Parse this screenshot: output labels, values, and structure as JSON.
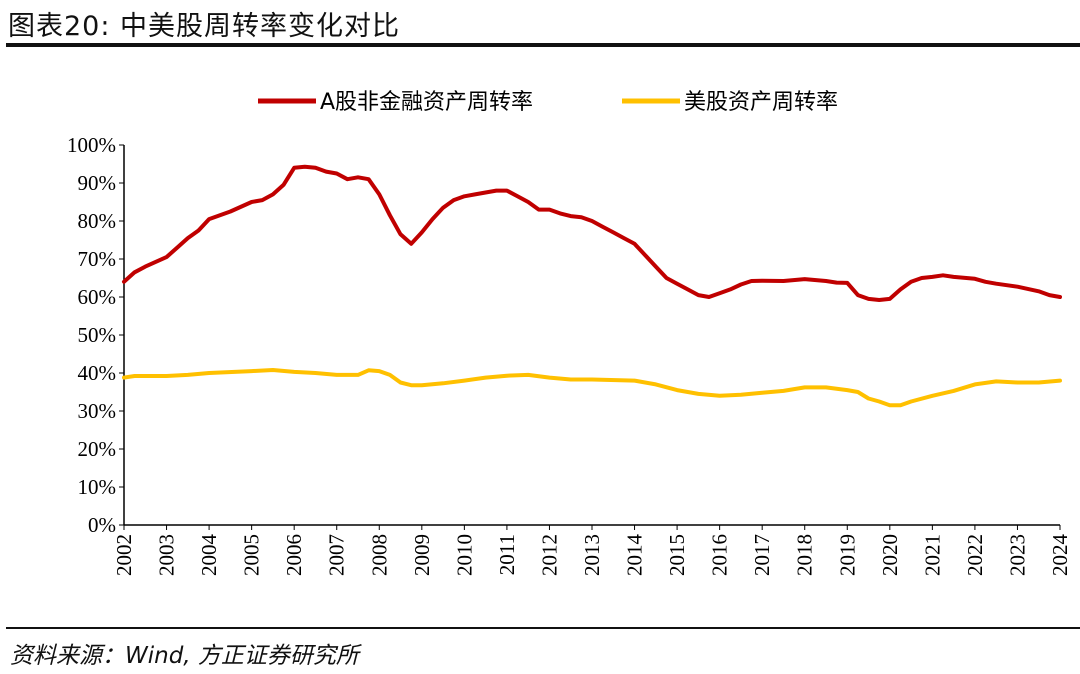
{
  "title": "图表20: 中美股周转率变化对比",
  "source": "资料来源：Wind, 方正证券研究所",
  "chart_data": {
    "type": "line",
    "title": "图表20: 中美股周转率变化对比",
    "xlim": [
      2002,
      2024
    ],
    "ylim": [
      0,
      100
    ],
    "y_ticks": [
      "0%",
      "10%",
      "20%",
      "30%",
      "40%",
      "50%",
      "60%",
      "70%",
      "80%",
      "90%",
      "100%"
    ],
    "x_ticks": [
      "2002",
      "2003",
      "2004",
      "2005",
      "2006",
      "2007",
      "2008",
      "2009",
      "2010",
      "2011",
      "2012",
      "2013",
      "2014",
      "2015",
      "2016",
      "2017",
      "2018",
      "2019",
      "2020",
      "2021",
      "2022",
      "2023",
      "2024"
    ],
    "legend_position": "top",
    "grid": false,
    "series": [
      {
        "name": "A股非金融资产周转率",
        "color": "#C00000",
        "x": [
          2002,
          2002.25,
          2002.5,
          2003,
          2003.25,
          2003.5,
          2003.75,
          2004,
          2004.5,
          2005,
          2005.25,
          2005.5,
          2005.75,
          2006,
          2006.25,
          2006.5,
          2006.75,
          2007,
          2007.25,
          2007.5,
          2007.75,
          2008,
          2008.25,
          2008.5,
          2008.75,
          2009,
          2009.25,
          2009.5,
          2009.75,
          2010,
          2010.25,
          2010.5,
          2010.75,
          2011,
          2011.25,
          2011.5,
          2011.75,
          2012,
          2012.25,
          2012.5,
          2012.75,
          2013,
          2013.25,
          2013.5,
          2013.75,
          2014,
          2014.25,
          2014.5,
          2014.75,
          2015,
          2015.25,
          2015.5,
          2015.75,
          2016,
          2016.25,
          2016.5,
          2016.75,
          2017,
          2017.5,
          2018,
          2018.5,
          2018.75,
          2019,
          2019.25,
          2019.5,
          2019.75,
          2020,
          2020.25,
          2020.5,
          2020.75,
          2021,
          2021.25,
          2021.5,
          2022,
          2022.25,
          2022.5,
          2023,
          2023.5,
          2023.75,
          2024
        ],
        "values": [
          64,
          66.5,
          68,
          70.5,
          73,
          75.5,
          77.5,
          80.5,
          82.5,
          85,
          85.5,
          87,
          89.5,
          94,
          94.3,
          94,
          93,
          92.5,
          91,
          91.5,
          91,
          87,
          81.5,
          76.5,
          74,
          77,
          80.5,
          83.5,
          85.5,
          86.5,
          87,
          87.5,
          88,
          88,
          86.5,
          85,
          83,
          83,
          82,
          81.3,
          81,
          80,
          78.5,
          77,
          75.5,
          74,
          71,
          68,
          65,
          63.5,
          62,
          60.5,
          60,
          61,
          62,
          63.3,
          64.2,
          64.3,
          64.2,
          64.7,
          64.2,
          63.8,
          63.7,
          60.5,
          59.5,
          59.2,
          59.5,
          62,
          64,
          65,
          65.3,
          65.7,
          65.3,
          64.8,
          64,
          63.5,
          62.7,
          61.5,
          60.5,
          60
        ]
      },
      {
        "name": "美股资产周转率",
        "color": "#FFC000",
        "x": [
          2002,
          2002.25,
          2003,
          2003.5,
          2004,
          2005,
          2005.5,
          2006,
          2006.5,
          2007,
          2007.5,
          2007.75,
          2008,
          2008.25,
          2008.5,
          2008.75,
          2009,
          2009.5,
          2010,
          2010.5,
          2011,
          2011.5,
          2012,
          2012.5,
          2013,
          2014,
          2014.5,
          2015,
          2015.5,
          2016,
          2016.5,
          2017,
          2017.5,
          2018,
          2018.5,
          2019,
          2019.25,
          2019.5,
          2019.75,
          2020,
          2020.25,
          2020.5,
          2021,
          2021.5,
          2022,
          2022.5,
          2023,
          2023.5,
          2024
        ],
        "values": [
          38.8,
          39.2,
          39.2,
          39.5,
          40,
          40.5,
          40.8,
          40.3,
          40,
          39.5,
          39.5,
          40.7,
          40.5,
          39.5,
          37.5,
          36.8,
          36.8,
          37.3,
          38,
          38.8,
          39.3,
          39.5,
          38.8,
          38.3,
          38.3,
          38,
          37,
          35.5,
          34.5,
          34,
          34.3,
          34.8,
          35.3,
          36.2,
          36.2,
          35.5,
          35,
          33.3,
          32.5,
          31.5,
          31.5,
          32.5,
          34,
          35.3,
          37,
          37.8,
          37.5,
          37.5,
          38
        ]
      }
    ]
  }
}
